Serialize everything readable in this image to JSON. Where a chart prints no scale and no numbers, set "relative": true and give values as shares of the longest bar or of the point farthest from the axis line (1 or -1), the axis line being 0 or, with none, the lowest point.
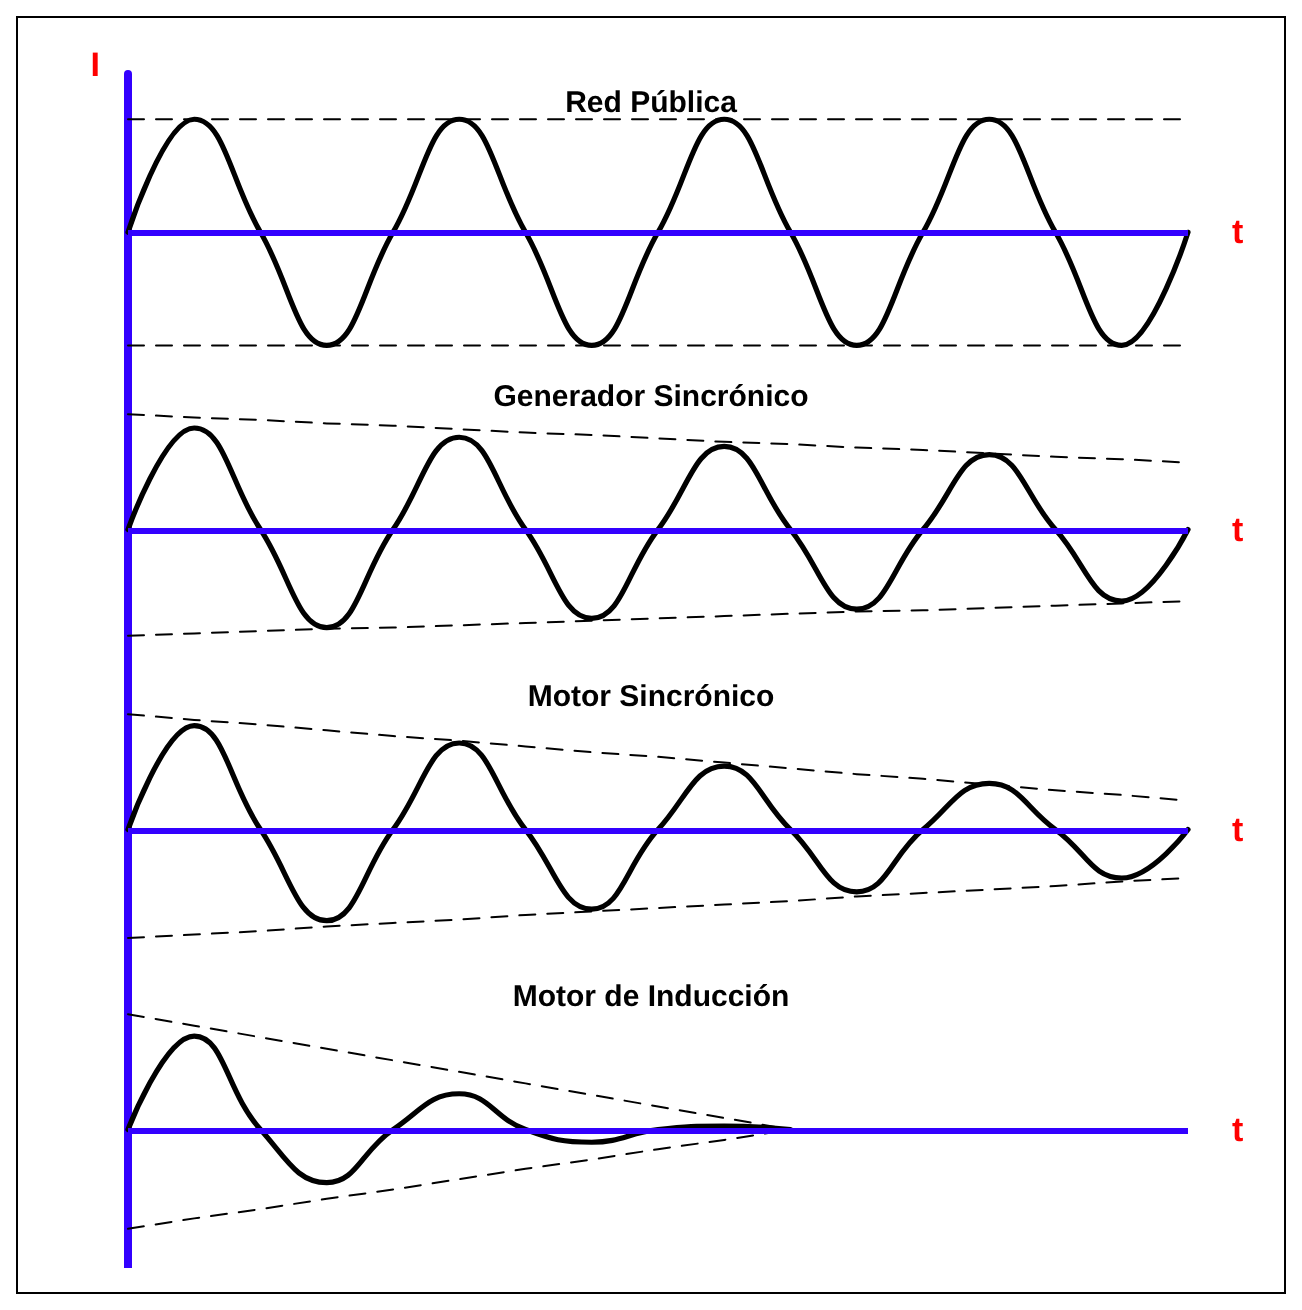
{
  "chart_data": [
    {
      "type": "line",
      "title": "Red Pública",
      "xlabel": "t",
      "ylabel": "I",
      "relative": true,
      "ref_lines": [
        {
          "axis": "y",
          "value": 0,
          "color": "#3300ff"
        }
      ],
      "categories": [
        null,
        null,
        null,
        null,
        null,
        null,
        null,
        null,
        null,
        null,
        null,
        null,
        null,
        null,
        null,
        null,
        null
      ],
      "series": [
        {
          "color": "#000000",
          "line_style": "solid",
          "values": [
            0,
            1,
            0,
            -1,
            0,
            1,
            0,
            -1,
            0,
            1,
            0,
            -1,
            0,
            1,
            0,
            -1,
            0
          ]
        },
        {
          "color": "#000000",
          "line_style": "dashed",
          "values": [
            1,
            1,
            1,
            1,
            1,
            1,
            1,
            1,
            1,
            1,
            1,
            1,
            1,
            1,
            1,
            1,
            1
          ]
        },
        {
          "color": "#000000",
          "line_style": "dashed",
          "values": [
            -1,
            -1,
            -1,
            -1,
            -1,
            -1,
            -1,
            -1,
            -1,
            -1,
            -1,
            -1,
            -1,
            -1,
            -1,
            -1,
            -1
          ]
        }
      ]
    },
    {
      "type": "line",
      "title": "Generador Sincrónico",
      "xlabel": "t",
      "relative": true,
      "ref_lines": [
        {
          "axis": "y",
          "value": 0,
          "color": "#3300ff"
        }
      ],
      "categories": [
        null,
        null,
        null,
        null,
        null,
        null,
        null,
        null,
        null,
        null,
        null,
        null,
        null,
        null,
        null,
        null,
        null
      ],
      "series": [
        {
          "color": "#000000",
          "line_style": "solid",
          "values": [
            0,
            0.88,
            0,
            -0.85,
            0,
            0.8,
            0,
            -0.77,
            0,
            0.72,
            0,
            -0.69,
            0,
            0.65,
            0,
            -0.62,
            0
          ]
        },
        {
          "color": "#000000",
          "line_style": "dashed",
          "values": [
            1,
            0.97,
            0.95,
            0.92,
            0.9,
            0.87,
            0.84,
            0.82,
            0.79,
            0.76,
            0.74,
            0.71,
            0.69,
            0.66,
            0.63,
            0.61,
            0.58
          ]
        },
        {
          "color": "#000000",
          "line_style": "dashed",
          "values": [
            -0.92,
            -0.9,
            -0.88,
            -0.86,
            -0.85,
            -0.83,
            -0.81,
            -0.79,
            -0.77,
            -0.75,
            -0.73,
            -0.71,
            -0.7,
            -0.68,
            -0.66,
            -0.64,
            -0.62
          ]
        }
      ]
    },
    {
      "type": "line",
      "title": "Motor Sincrónico",
      "xlabel": "t",
      "relative": true,
      "ref_lines": [
        {
          "axis": "y",
          "value": 0,
          "color": "#3300ff"
        }
      ],
      "categories": [
        null,
        null,
        null,
        null,
        null,
        null,
        null,
        null,
        null,
        null,
        null,
        null,
        null,
        null,
        null,
        null,
        null
      ],
      "series": [
        {
          "color": "#000000",
          "line_style": "solid",
          "values": [
            0,
            0.9,
            0,
            -0.79,
            0,
            0.75,
            0,
            -0.69,
            0,
            0.55,
            0,
            -0.54,
            0,
            0.4,
            0,
            -0.42,
            0
          ]
        },
        {
          "color": "#000000",
          "line_style": "dashed",
          "values": [
            1,
            0.95,
            0.91,
            0.86,
            0.81,
            0.77,
            0.72,
            0.67,
            0.63,
            0.58,
            0.53,
            0.48,
            0.44,
            0.39,
            0.34,
            0.3,
            0.25
          ]
        },
        {
          "color": "#000000",
          "line_style": "dashed",
          "values": [
            -0.94,
            -0.91,
            -0.88,
            -0.84,
            -0.81,
            -0.78,
            -0.74,
            -0.71,
            -0.68,
            -0.65,
            -0.62,
            -0.58,
            -0.55,
            -0.52,
            -0.49,
            -0.45,
            -0.42
          ]
        }
      ]
    },
    {
      "type": "line",
      "title": "Motor de Inducción",
      "xlabel": "t",
      "relative": true,
      "ref_lines": [
        {
          "axis": "y",
          "value": 0,
          "color": "#3300ff"
        }
      ],
      "categories": [
        null,
        null,
        null,
        null,
        null,
        null,
        null,
        null,
        null,
        null,
        null,
        null,
        null,
        null,
        null,
        null,
        null
      ],
      "series": [
        {
          "color": "#000000",
          "line_style": "solid",
          "values": [
            0,
            0.81,
            0,
            -0.46,
            0,
            0.31,
            0,
            -0.11,
            0,
            0.03,
            0,
            null,
            null,
            null,
            null,
            null,
            null
          ]
        },
        {
          "color": "#000000",
          "line_style": "dashed",
          "values": [
            1,
            0.9,
            0.8,
            0.7,
            0.6,
            0.5,
            0.4,
            0.3,
            0.2,
            0.1,
            0,
            null,
            null,
            null,
            null,
            null,
            null
          ]
        },
        {
          "color": "#000000",
          "line_style": "dashed",
          "values": [
            -0.86,
            -0.77,
            -0.69,
            -0.6,
            -0.52,
            -0.43,
            -0.34,
            -0.26,
            -0.17,
            -0.09,
            0,
            null,
            null,
            null,
            null,
            null,
            null
          ]
        }
      ]
    }
  ]
}
